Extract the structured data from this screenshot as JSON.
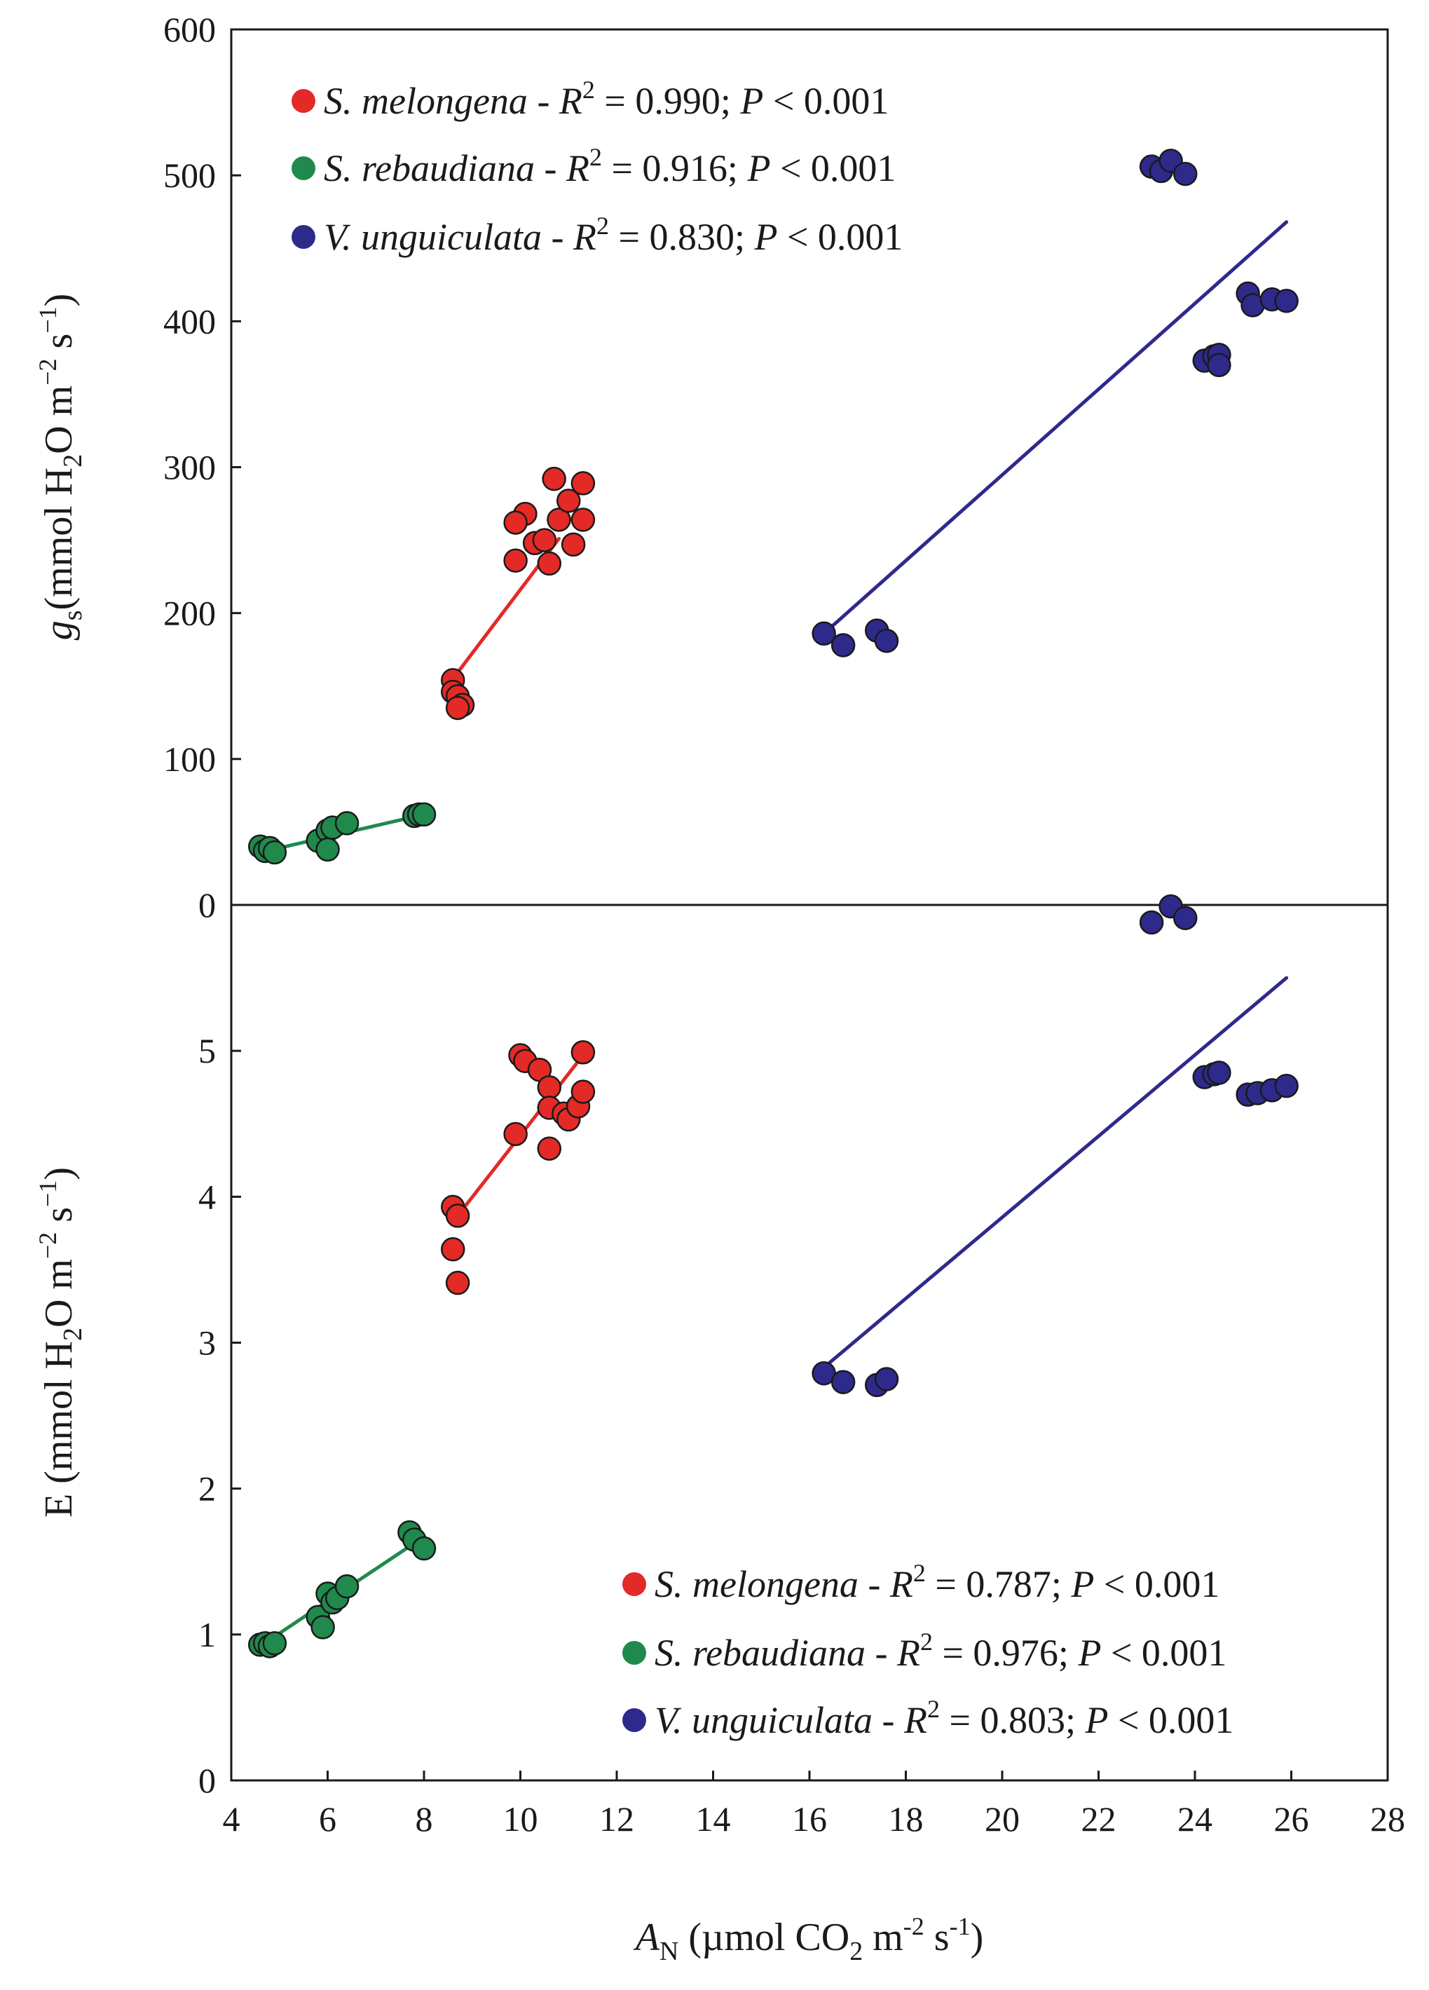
{
  "chart_data": [
    {
      "panel": "top",
      "type": "scatter",
      "y_var": "g",
      "y_var_sub": "s",
      "ylabel_main": "(mmol H",
      "ylabel_sub": "2",
      "ylabel_mid": "O m",
      "ylabel_sup1": "−2",
      "ylabel_mid2": " s",
      "ylabel_sup2": "−1",
      "ylabel_end": ")",
      "ylim": [
        0,
        600
      ],
      "yticks": [
        "0",
        "100",
        "200",
        "300",
        "400",
        "500",
        "600"
      ],
      "grid": false,
      "legend_position": "top-left",
      "series": [
        {
          "name": "S. melongena",
          "color": "#e32a26",
          "r2_label": "R",
          "r2_sup": "2",
          "r2_value": " = 0.990; ",
          "p_label": "P",
          "p_value": " < 0.001",
          "fit": [
            [
              8.6,
              155
            ],
            [
              10.8,
              251
            ]
          ],
          "points": [
            [
              8.6,
              154
            ],
            [
              8.6,
              146
            ],
            [
              8.7,
              143
            ],
            [
              8.8,
              137
            ],
            [
              8.7,
              135
            ],
            [
              9.9,
              236
            ],
            [
              10.1,
              268
            ],
            [
              10.3,
              248
            ],
            [
              10.5,
              250
            ],
            [
              9.9,
              262
            ],
            [
              10.6,
              234
            ],
            [
              10.7,
              292
            ],
            [
              10.8,
              264
            ],
            [
              11.0,
              277
            ],
            [
              11.1,
              247
            ],
            [
              11.3,
              289
            ],
            [
              11.3,
              264
            ]
          ]
        },
        {
          "name": "S. rebaudiana",
          "color": "#1f8a4c",
          "r2_label": "R",
          "r2_sup": "2",
          "r2_value": " = 0.916; ",
          "p_label": "P",
          "p_value": " < 0.001",
          "fit": [
            [
              4.6,
              36
            ],
            [
              8.0,
              62
            ]
          ],
          "points": [
            [
              4.6,
              40
            ],
            [
              4.7,
              37
            ],
            [
              4.8,
              39
            ],
            [
              4.9,
              36
            ],
            [
              5.8,
              44
            ],
            [
              6.0,
              51
            ],
            [
              6.0,
              38
            ],
            [
              6.1,
              53
            ],
            [
              6.4,
              56
            ],
            [
              7.8,
              61
            ],
            [
              7.9,
              62
            ],
            [
              8.0,
              62
            ]
          ]
        },
        {
          "name": "V. unguiculata",
          "color": "#2e2a8c",
          "r2_label": "R",
          "r2_sup": "2",
          "r2_value": " = 0.830; ",
          "p_label": "P",
          "p_value": " < 0.001",
          "fit": [
            [
              16.3,
              186
            ],
            [
              25.9,
              468
            ]
          ],
          "points": [
            [
              16.3,
              186
            ],
            [
              16.7,
              178
            ],
            [
              17.4,
              188
            ],
            [
              17.6,
              181
            ],
            [
              23.1,
              506
            ],
            [
              23.3,
              503
            ],
            [
              23.5,
              510
            ],
            [
              23.8,
              501
            ],
            [
              24.2,
              373
            ],
            [
              24.4,
              376
            ],
            [
              24.5,
              377
            ],
            [
              24.5,
              370
            ],
            [
              25.1,
              419
            ],
            [
              25.2,
              411
            ],
            [
              25.6,
              415
            ],
            [
              25.9,
              414
            ]
          ]
        }
      ]
    },
    {
      "panel": "bottom",
      "type": "scatter",
      "y_var": "E",
      "ylabel_main": " (mmol H",
      "ylabel_sub": "2",
      "ylabel_mid": "O m",
      "ylabel_sup1": "−2",
      "ylabel_mid2": " s",
      "ylabel_sup2": "−1",
      "ylabel_end": ")",
      "ylim": [
        0,
        6
      ],
      "yticks": [
        "0",
        "1",
        "2",
        "3",
        "4",
        "5"
      ],
      "grid": false,
      "legend_position": "bottom-right",
      "series": [
        {
          "name": "S. melongena",
          "color": "#e32a26",
          "r2_label": "R",
          "r2_sup": "2",
          "r2_value": " = 0.787; ",
          "p_label": "P",
          "p_value": " < 0.001",
          "fit": [
            [
              8.7,
              3.87
            ],
            [
              11.3,
              4.97
            ]
          ],
          "points": [
            [
              8.6,
              3.93
            ],
            [
              8.7,
              3.87
            ],
            [
              8.6,
              3.64
            ],
            [
              8.7,
              3.41
            ],
            [
              9.9,
              4.43
            ],
            [
              10.0,
              4.97
            ],
            [
              10.1,
              4.93
            ],
            [
              10.4,
              4.87
            ],
            [
              10.6,
              4.75
            ],
            [
              10.6,
              4.61
            ],
            [
              10.6,
              4.33
            ],
            [
              10.9,
              4.57
            ],
            [
              11.0,
              4.53
            ],
            [
              11.2,
              4.62
            ],
            [
              11.3,
              4.72
            ],
            [
              11.3,
              4.99
            ]
          ]
        },
        {
          "name": "S. rebaudiana",
          "color": "#1f8a4c",
          "r2_label": "R",
          "r2_sup": "2",
          "r2_value": " = 0.976; ",
          "p_label": "P",
          "p_value": " < 0.001",
          "fit": [
            [
              4.6,
              0.92
            ],
            [
              8.0,
              1.67
            ]
          ],
          "points": [
            [
              4.6,
              0.93
            ],
            [
              4.7,
              0.94
            ],
            [
              4.8,
              0.92
            ],
            [
              4.9,
              0.94
            ],
            [
              5.8,
              1.12
            ],
            [
              5.9,
              1.05
            ],
            [
              6.0,
              1.28
            ],
            [
              6.1,
              1.22
            ],
            [
              6.2,
              1.25
            ],
            [
              6.4,
              1.33
            ],
            [
              7.7,
              1.7
            ],
            [
              7.8,
              1.65
            ],
            [
              8.0,
              1.59
            ]
          ]
        },
        {
          "name": "V. unguiculata",
          "color": "#2e2a8c",
          "r2_label": "R",
          "r2_sup": "2",
          "r2_value": " = 0.803; ",
          "p_label": "P",
          "p_value": " < 0.001",
          "fit": [
            [
              16.3,
              2.83
            ],
            [
              25.9,
              5.5
            ]
          ],
          "points": [
            [
              16.3,
              2.79
            ],
            [
              16.7,
              2.73
            ],
            [
              17.4,
              2.71
            ],
            [
              17.6,
              2.75
            ],
            [
              23.1,
              5.88
            ],
            [
              23.5,
              5.99
            ],
            [
              23.8,
              5.91
            ],
            [
              24.2,
              4.82
            ],
            [
              24.4,
              4.84
            ],
            [
              24.5,
              4.85
            ],
            [
              25.1,
              4.7
            ],
            [
              25.3,
              4.71
            ],
            [
              25.6,
              4.73
            ],
            [
              25.9,
              4.76
            ]
          ]
        }
      ]
    }
  ],
  "x_axis": {
    "xlim": [
      4,
      28
    ],
    "xticks": [
      "4",
      "6",
      "8",
      "10",
      "12",
      "14",
      "16",
      "18",
      "20",
      "22",
      "24",
      "26",
      "28"
    ],
    "xlabel_var": "A",
    "xlabel_var_sub": "N",
    "xlabel_main": " (µmol CO",
    "xlabel_sub": "2",
    "xlabel_mid": " m",
    "xlabel_sup1": "-2",
    "xlabel_mid2": " s",
    "xlabel_sup2": "-1",
    "xlabel_end": ")"
  },
  "colors": {
    "axis": "#1a1a1a",
    "marker_edge": "#1a1a1a"
  }
}
